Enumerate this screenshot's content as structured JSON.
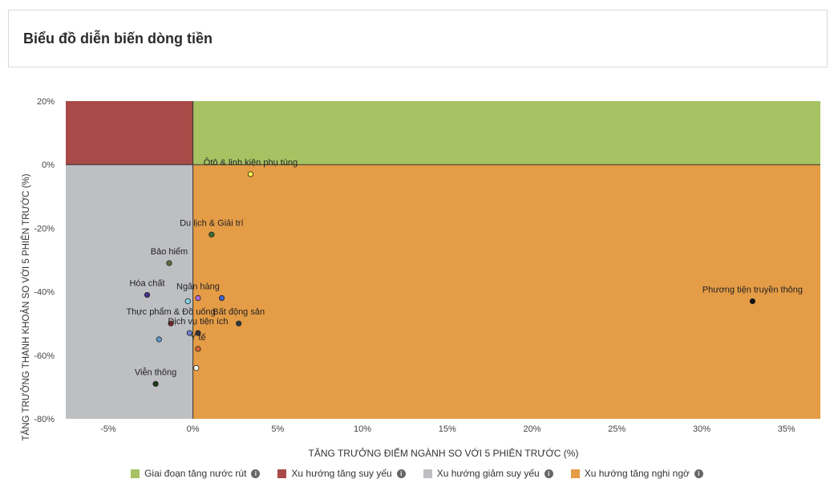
{
  "page_title": "Biểu đồ diễn biến dòng tiền",
  "chart_data": {
    "type": "scatter",
    "xlabel": "TĂNG TRƯỞNG ĐIỂM NGÀNH SO VỚI 5 PHIÊN TRƯỚC (%)",
    "ylabel": "TĂNG TRƯỞNG THANH KHOẢN SO VỚI 5 PHIÊN TRƯỚC (%)",
    "xlim": [
      -7.5,
      37
    ],
    "ylim": [
      -80,
      20
    ],
    "xticks": [
      -5,
      0,
      5,
      10,
      15,
      20,
      25,
      30,
      35
    ],
    "xtick_labels": [
      "-5%",
      "0%",
      "5%",
      "10%",
      "15%",
      "20%",
      "25%",
      "30%",
      "35%"
    ],
    "yticks": [
      20,
      0,
      -20,
      -40,
      -60,
      -80
    ],
    "ytick_labels": [
      "20%",
      "0%",
      "-20%",
      "-40%",
      "-60%",
      "-80%"
    ],
    "quadrants": [
      {
        "name": "Giai đoạn tăng nước rút",
        "color": "#a6c263"
      },
      {
        "name": "Xu hướng tăng suy yếu",
        "color": "#a84a47"
      },
      {
        "name": "Xu hướng giảm suy yếu",
        "color": "#bebfc2"
      },
      {
        "name": "Xu hướng tăng nghi ngờ",
        "color": "#e59c46"
      }
    ],
    "points": [
      {
        "label": "Ôtô & linh kiện phụ tùng",
        "x": 3.4,
        "y": -3,
        "color": "#f6f04a"
      },
      {
        "label": "Du lịch & Giải trí",
        "x": 1.1,
        "y": -22,
        "color": "#3c6b2e"
      },
      {
        "label": "Bảo hiểm",
        "x": -1.4,
        "y": -31,
        "color": "#5e6a3c"
      },
      {
        "label": "Hóa chất",
        "x": -2.7,
        "y": -41,
        "color": "#4b2d8a"
      },
      {
        "label": "Ngân hàng",
        "x": 0.3,
        "y": -42,
        "color": "#b06ad6"
      },
      {
        "label": "",
        "x": -0.3,
        "y": -43,
        "color": "#7fd6e8"
      },
      {
        "label": "",
        "x": 1.7,
        "y": -42,
        "color": "#3e62c4"
      },
      {
        "label": "Phương tiện truyền thông",
        "x": 33,
        "y": -43,
        "color": "#111111"
      },
      {
        "label": "Bất động sản",
        "x": 2.7,
        "y": -50,
        "color": "#2a3a3a"
      },
      {
        "label": "Thực phẩm & Đồ uống",
        "x": -1.3,
        "y": -50,
        "color": "#8a2b2b"
      },
      {
        "label": "",
        "x": -0.2,
        "y": -53,
        "color": "#6f7fd6"
      },
      {
        "label": "Dịch vụ tiện ích",
        "x": 0.3,
        "y": -53,
        "color": "#333333"
      },
      {
        "label": "",
        "x": -2,
        "y": -55,
        "color": "#5c9bd5"
      },
      {
        "label": "Y tế",
        "x": 0.3,
        "y": -58,
        "color": "#d9663a"
      },
      {
        "label": "",
        "x": 0.2,
        "y": -64,
        "color": "#ffffff"
      },
      {
        "label": "Viễn thông",
        "x": -2.2,
        "y": -69,
        "color": "#1e3a1e"
      }
    ]
  },
  "legend": [
    {
      "label": "Giai đoạn tăng nước rút",
      "color": "#a6c263"
    },
    {
      "label": "Xu hướng tăng suy yếu",
      "color": "#a84a47"
    },
    {
      "label": "Xu hướng giảm suy yếu",
      "color": "#bebfc2"
    },
    {
      "label": "Xu hướng tăng nghi ngờ",
      "color": "#e59c46"
    }
  ],
  "info_icon": "info-circle-icon"
}
